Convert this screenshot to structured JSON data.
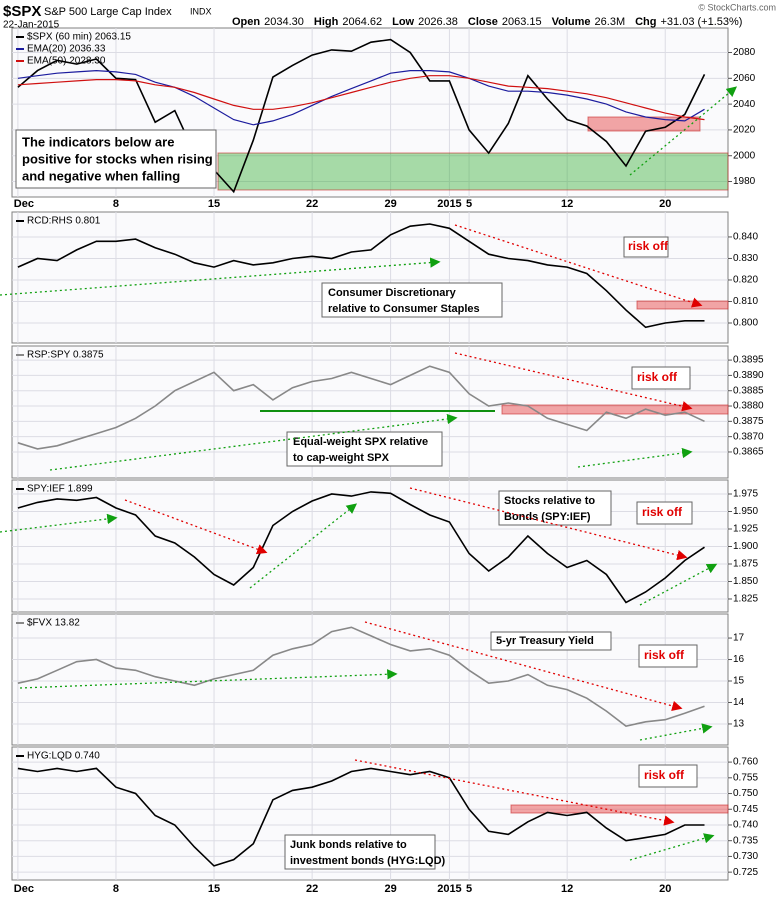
{
  "header": {
    "symbol": "$SPX",
    "name": "S&P 500 Large Cap Index",
    "exchange": "INDX",
    "date": "22-Jan-2015",
    "quote": [
      {
        "label": "Open",
        "value": "2034.30"
      },
      {
        "label": "High",
        "value": "2064.62"
      },
      {
        "label": "Low",
        "value": "2026.38"
      },
      {
        "label": "Close",
        "value": "2063.15"
      },
      {
        "label": "Volume",
        "value": "26.3M"
      },
      {
        "label": "Chg",
        "value": "+31.03 (+1.53%)"
      }
    ],
    "credit": "© StockCharts.com"
  },
  "chart_data": [
    {
      "type": "line",
      "x": [
        0,
        1,
        2,
        3,
        4,
        5,
        6,
        7,
        8,
        9,
        10,
        11,
        12,
        13,
        14,
        15,
        16,
        17,
        18,
        19,
        20,
        21,
        22,
        23,
        24,
        25,
        26,
        27,
        28,
        29,
        30,
        31,
        32,
        33,
        34,
        35
      ],
      "xlim": [
        -0.3,
        36.2
      ],
      "ylim": [
        1968,
        2099
      ],
      "yticks": [
        1980,
        2000,
        2020,
        2040,
        2060,
        2080
      ],
      "xticks": [
        {
          "value": 0,
          "label": "Dec"
        },
        {
          "value": 5,
          "label": "8"
        },
        {
          "value": 10,
          "label": "15"
        },
        {
          "value": 15,
          "label": "22"
        },
        {
          "value": 19,
          "label": "29"
        },
        {
          "value": 22,
          "label": "2015"
        },
        {
          "value": 23,
          "label": "5"
        },
        {
          "value": 28,
          "label": "12"
        },
        {
          "value": 33,
          "label": "20"
        }
      ],
      "grid": true,
      "series": [
        {
          "name": "$SPX (60 min) 2063.15",
          "color": "#000000",
          "values": [
            2053,
            2066,
            2074,
            2071,
            2075,
            2060,
            2059,
            2026,
            2035,
            2002,
            1989,
            1972,
            2012,
            2061,
            2070,
            2078,
            2082,
            2081,
            2088,
            2090,
            2080,
            2058,
            2058,
            2020,
            2002,
            2025,
            2062,
            2044,
            2028,
            2023,
            2011,
            1992,
            2019,
            2022,
            2032,
            2063
          ]
        },
        {
          "name": "EMA(20) 2036.33",
          "color": "#1c1c9e",
          "values": [
            2060,
            2062,
            2064,
            2065,
            2066,
            2065,
            2063,
            2057,
            2053,
            2046,
            2037,
            2028,
            2024,
            2027,
            2032,
            2039,
            2046,
            2052,
            2058,
            2064,
            2066,
            2066,
            2065,
            2060,
            2054,
            2050,
            2050,
            2049,
            2047,
            2044,
            2040,
            2034,
            2030,
            2028,
            2027,
            2036
          ]
        },
        {
          "name": "EMA(50) 2028.30",
          "color": "#d01010",
          "values": [
            2055,
            2056,
            2057,
            2058,
            2059,
            2059,
            2058,
            2055,
            2053,
            2049,
            2044,
            2039,
            2036,
            2036,
            2038,
            2041,
            2045,
            2049,
            2053,
            2057,
            2060,
            2062,
            2062,
            2060,
            2057,
            2054,
            2053,
            2052,
            2050,
            2048,
            2045,
            2041,
            2037,
            2033,
            2030,
            2028
          ]
        }
      ],
      "annotations": [
        "The indicators below are",
        "positive for stocks when rising",
        "and negative when falling"
      ]
    },
    {
      "type": "line",
      "x": [
        0,
        1,
        2,
        3,
        4,
        5,
        6,
        7,
        8,
        9,
        10,
        11,
        12,
        13,
        14,
        15,
        16,
        17,
        18,
        19,
        20,
        21,
        22,
        23,
        24,
        25,
        26,
        27,
        28,
        29,
        30,
        31,
        32,
        33,
        34,
        35
      ],
      "xlim": [
        -0.3,
        36.2
      ],
      "ylim": [
        0.7907,
        0.8516
      ],
      "yticks": [
        {
          "value": 0.8,
          "label": "0.800"
        },
        {
          "value": 0.81,
          "label": "0.810"
        },
        {
          "value": 0.82,
          "label": "0.820"
        },
        {
          "value": 0.83,
          "label": "0.830"
        },
        {
          "value": 0.84,
          "label": "0.840"
        }
      ],
      "grid": true,
      "series": [
        {
          "name": "RCD:RHS 0.801",
          "color": "#000000",
          "values": [
            0.826,
            0.83,
            0.829,
            0.834,
            0.838,
            0.838,
            0.839,
            0.835,
            0.832,
            0.828,
            0.826,
            0.829,
            0.827,
            0.828,
            0.83,
            0.831,
            0.83,
            0.833,
            0.834,
            0.841,
            0.845,
            0.846,
            0.844,
            0.838,
            0.832,
            0.83,
            0.829,
            0.827,
            0.826,
            0.823,
            0.815,
            0.806,
            0.798,
            0.8,
            0.801,
            0.801
          ]
        }
      ],
      "annotations": [
        "risk off",
        "Consumer Discretionary",
        "relative to Consumer Staples"
      ]
    },
    {
      "type": "line",
      "x": [
        0,
        1,
        2,
        3,
        4,
        5,
        6,
        7,
        8,
        9,
        10,
        11,
        12,
        13,
        14,
        15,
        16,
        17,
        18,
        19,
        20,
        21,
        22,
        23,
        24,
        25,
        26,
        27,
        28,
        29,
        30,
        31,
        32,
        33,
        34,
        35
      ],
      "xlim": [
        -0.3,
        36.2
      ],
      "ylim": [
        0.38565,
        0.38996
      ],
      "yticks": [
        0.3865,
        {
          "value": 0.387,
          "label": "0.3870"
        },
        0.3875,
        {
          "value": 0.388,
          "label": "0.3880"
        },
        0.3885,
        {
          "value": 0.389,
          "label": "0.3890"
        },
        0.3895
      ],
      "grid": true,
      "series": [
        {
          "name": "RSP:SPY 0.3875",
          "color": "#888888",
          "values": [
            0.3868,
            0.3866,
            0.3867,
            0.3869,
            0.3871,
            0.3873,
            0.3876,
            0.388,
            0.3885,
            0.3888,
            0.3891,
            0.3885,
            0.3887,
            0.3882,
            0.3886,
            0.3888,
            0.3889,
            0.3891,
            0.3889,
            0.3887,
            0.389,
            0.3893,
            0.3891,
            0.3884,
            0.388,
            0.3881,
            0.388,
            0.3876,
            0.3874,
            0.3872,
            0.3878,
            0.3876,
            0.3879,
            0.3877,
            0.3878,
            0.3875
          ]
        }
      ],
      "annotations": [
        "risk off",
        "Equal-weight SPX relative",
        "to cap-weight SPX"
      ]
    },
    {
      "type": "line",
      "x": [
        0,
        1,
        2,
        3,
        4,
        5,
        6,
        7,
        8,
        9,
        10,
        11,
        12,
        13,
        14,
        15,
        16,
        17,
        18,
        19,
        20,
        21,
        22,
        23,
        24,
        25,
        26,
        27,
        28,
        29,
        30,
        31,
        32,
        33,
        34,
        35
      ],
      "xlim": [
        -0.3,
        36.2
      ],
      "ylim": [
        1.8064,
        1.995
      ],
      "yticks": [
        1.825,
        {
          "value": 1.85,
          "label": "1.850"
        },
        1.875,
        {
          "value": 1.9,
          "label": "1.900"
        },
        1.925,
        {
          "value": 1.95,
          "label": "1.950"
        },
        1.975
      ],
      "grid": true,
      "series": [
        {
          "name": "SPY:IEF 1.899",
          "color": "#000000",
          "values": [
            1.955,
            1.963,
            1.968,
            1.966,
            1.97,
            1.955,
            1.945,
            1.915,
            1.905,
            1.885,
            1.86,
            1.845,
            1.87,
            1.93,
            1.95,
            1.965,
            1.975,
            1.972,
            1.978,
            1.976,
            1.96,
            1.945,
            1.935,
            1.89,
            1.865,
            1.885,
            1.915,
            1.89,
            1.87,
            1.88,
            1.86,
            1.82,
            1.835,
            1.855,
            1.88,
            1.899
          ]
        }
      ],
      "annotations": [
        "Stocks relative to",
        "Bonds (SPY:IEF)",
        "risk off"
      ]
    },
    {
      "type": "line",
      "x": [
        0,
        1,
        2,
        3,
        4,
        5,
        6,
        7,
        8,
        9,
        10,
        11,
        12,
        13,
        14,
        15,
        16,
        17,
        18,
        19,
        20,
        21,
        22,
        23,
        24,
        25,
        26,
        27,
        28,
        29,
        30,
        31,
        32,
        33,
        34,
        35
      ],
      "xlim": [
        -0.3,
        36.2
      ],
      "ylim": [
        12.02,
        18.12
      ],
      "yticks": [
        13,
        14,
        15,
        16,
        17
      ],
      "grid": true,
      "series": [
        {
          "name": "$FVX 13.82",
          "color": "#888888",
          "values": [
            14.9,
            15.1,
            15.5,
            15.9,
            16.0,
            15.6,
            15.5,
            15.2,
            15.0,
            14.8,
            15.1,
            15.3,
            15.5,
            16.2,
            16.5,
            16.7,
            17.3,
            17.5,
            17.1,
            16.7,
            16.4,
            16.5,
            16.2,
            15.5,
            14.9,
            15.0,
            15.3,
            14.8,
            14.6,
            14.2,
            13.6,
            12.9,
            13.1,
            13.2,
            13.5,
            13.82
          ]
        }
      ],
      "annotations": [
        "5-yr Treasury Yield",
        "risk off"
      ]
    },
    {
      "type": "line",
      "x": [
        0,
        1,
        2,
        3,
        4,
        5,
        6,
        7,
        8,
        9,
        10,
        11,
        12,
        13,
        14,
        15,
        16,
        17,
        18,
        19,
        20,
        21,
        22,
        23,
        24,
        25,
        26,
        27,
        28,
        29,
        30,
        31,
        32,
        33,
        34,
        35
      ],
      "xlim": [
        -0.3,
        36.2
      ],
      "ylim": [
        0.7225,
        0.7648
      ],
      "yticks": [
        0.725,
        {
          "value": 0.73,
          "label": "0.730"
        },
        0.735,
        {
          "value": 0.74,
          "label": "0.740"
        },
        0.745,
        {
          "value": 0.75,
          "label": "0.750"
        },
        0.755,
        {
          "value": 0.76,
          "label": "0.760"
        }
      ],
      "xticks": [
        {
          "value": 0,
          "label": "Dec"
        },
        {
          "value": 5,
          "label": "8"
        },
        {
          "value": 10,
          "label": "15"
        },
        {
          "value": 15,
          "label": "22"
        },
        {
          "value": 19,
          "label": "29"
        },
        {
          "value": 22,
          "label": "2015"
        },
        {
          "value": 23,
          "label": "5"
        },
        {
          "value": 28,
          "label": "12"
        },
        {
          "value": 33,
          "label": "20"
        }
      ],
      "grid": true,
      "series": [
        {
          "name": "HYG:LQD 0.740",
          "color": "#000000",
          "values": [
            0.758,
            0.757,
            0.758,
            0.757,
            0.758,
            0.752,
            0.75,
            0.743,
            0.74,
            0.733,
            0.727,
            0.729,
            0.734,
            0.748,
            0.751,
            0.752,
            0.754,
            0.757,
            0.758,
            0.757,
            0.756,
            0.757,
            0.755,
            0.745,
            0.738,
            0.737,
            0.741,
            0.744,
            0.743,
            0.744,
            0.739,
            0.735,
            0.736,
            0.737,
            0.74,
            0.74
          ]
        }
      ],
      "annotations": [
        "risk off",
        "Junk bonds relative to",
        "investment bonds (HYG:LQD)"
      ]
    }
  ]
}
